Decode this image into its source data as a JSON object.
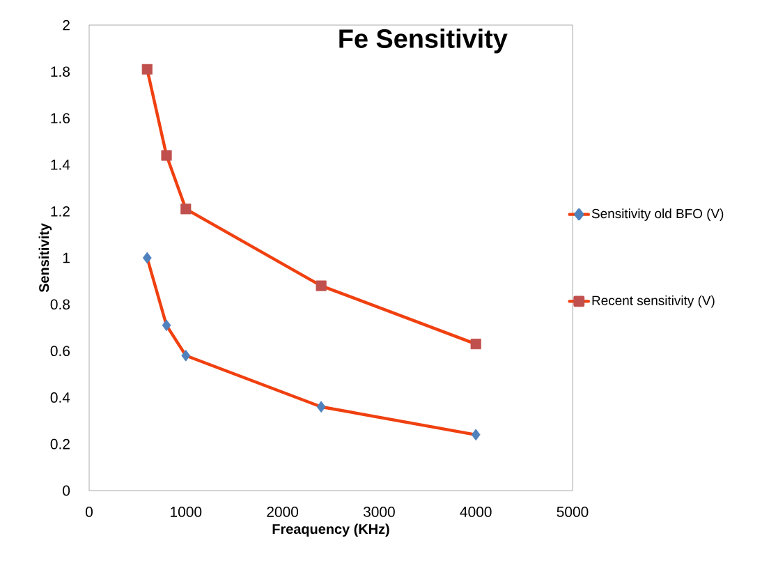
{
  "chart_data": {
    "type": "line",
    "title": "Fe Sensitivity",
    "xlabel": "Freaquency (KHz)",
    "ylabel": "Sensitivity",
    "xlim": [
      0,
      5000
    ],
    "xticks": [
      0,
      1000,
      2000,
      3000,
      4000,
      5000
    ],
    "ylim": [
      0,
      2
    ],
    "yticks": [
      0,
      0.2,
      0.4,
      0.6,
      0.8,
      1,
      1.2,
      1.4,
      1.6,
      1.8,
      2
    ],
    "grid": false,
    "legend": "right",
    "series": [
      {
        "name": "Sensitivity old BFO (V)",
        "color": "#f04010",
        "marker": "diamond",
        "colors": [
          "#4f81bd",
          "#4f81bd",
          "#4f81bd",
          "#4f81bd",
          "#4f81bd"
        ],
        "x": [
          600,
          800,
          1000,
          2400,
          4000
        ],
        "values": [
          1.0,
          0.71,
          0.58,
          0.36,
          0.24
        ]
      },
      {
        "name": "Recent sensitivity (V)",
        "color": "#f04010",
        "marker": "square",
        "colors": [
          "#c0504d",
          "#c0504d",
          "#c0504d",
          "#c0504d",
          "#c0504d"
        ],
        "x": [
          600,
          800,
          1000,
          2400,
          4000
        ],
        "values": [
          1.81,
          1.44,
          1.21,
          0.88,
          0.63
        ]
      }
    ]
  }
}
